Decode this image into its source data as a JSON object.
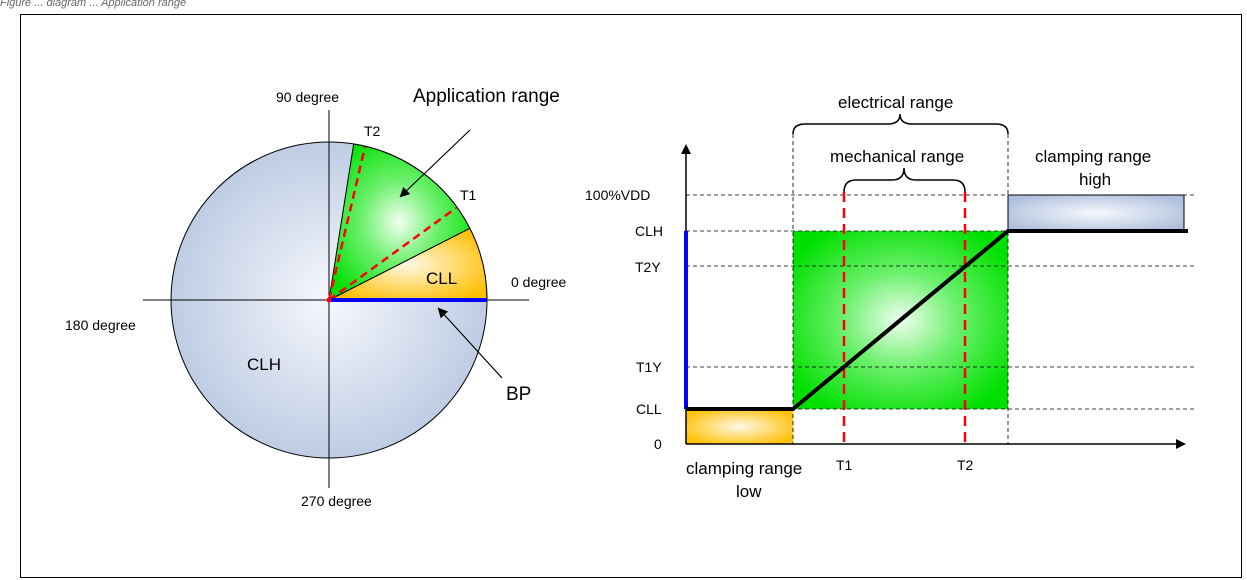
{
  "caption": "Figure ... diagram ... Application range",
  "colors": {
    "blue_fill": "#c3d0e6",
    "green": "#00e600",
    "yellow": "#ffc400",
    "blue_line": "#0000ff",
    "red_dash": "#ff0000"
  },
  "left_diagram": {
    "label_90": "90 degree",
    "label_0": "0 degree",
    "label_180": "180 degree",
    "label_270": "270 degree",
    "application_range": "Application range",
    "t1": "T1",
    "t2": "T2",
    "cll": "CLL",
    "clh": "CLH",
    "bp": "BP"
  },
  "right_diagram": {
    "electrical_range": "electrical range",
    "mechanical_range": "mechanical range",
    "clamping_high_1": "clamping range",
    "clamping_high_2": "high",
    "clamping_low_1": "clamping range",
    "clamping_low_2": "low",
    "y_100vdd": "100%VDD",
    "y_clh": "CLH",
    "y_t2y": "T2Y",
    "y_t1y": "T1Y",
    "y_cll": "CLL",
    "y_zero": "0",
    "x_t1": "T1",
    "x_t2": "T2"
  }
}
